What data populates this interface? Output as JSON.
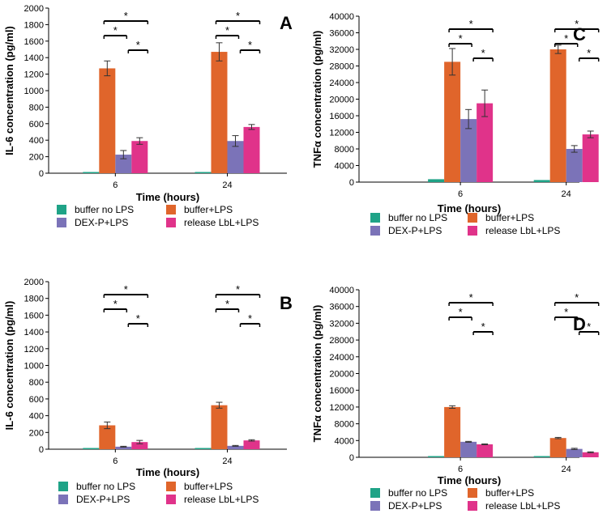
{
  "colors": {
    "buffer_no_lps": "#1fa387",
    "buffer_lps": "#e0652b",
    "dex_p_lps": "#7b73b8",
    "release_lbl_lps": "#e0338a"
  },
  "chart_data": [
    {
      "panel": "A",
      "type": "bar",
      "title": "",
      "xlabel": "Time (hours)",
      "ylabel": "IL-6 concentration (pg/ml)",
      "categories": [
        "6",
        "24"
      ],
      "ylim": [
        0,
        2000
      ],
      "yticks": [
        "0",
        "200",
        "400",
        "600",
        "800",
        "1000",
        "1200",
        "1400",
        "1600",
        "1800",
        "2000"
      ],
      "legend": [
        "buffer no LPS",
        "buffer+LPS",
        "DEX-P+LPS",
        "release LbL+LPS"
      ],
      "series": [
        {
          "name": "buffer no LPS",
          "color_key": "buffer_no_lps",
          "values": [
            5,
            5
          ],
          "errors": [
            0,
            0
          ]
        },
        {
          "name": "buffer+LPS",
          "color_key": "buffer_lps",
          "values": [
            1270,
            1470
          ],
          "errors": [
            90,
            110
          ]
        },
        {
          "name": "DEX-P+LPS",
          "color_key": "dex_p_lps",
          "values": [
            225,
            390
          ],
          "errors": [
            50,
            65
          ]
        },
        {
          "name": "release LbL+LPS",
          "color_key": "release_lbl_lps",
          "values": [
            390,
            560
          ],
          "errors": [
            40,
            30
          ]
        }
      ],
      "significance": "*"
    },
    {
      "panel": "C",
      "type": "bar",
      "title": "",
      "xlabel": "Time (hours)",
      "ylabel": "TNFα concentration (pg/ml)",
      "categories": [
        "6",
        "24"
      ],
      "ylim": [
        0,
        40000
      ],
      "yticks": [
        "0",
        "4000",
        "8000",
        "12000",
        "16000",
        "20000",
        "24000",
        "28000",
        "32000",
        "36000",
        "40000"
      ],
      "legend": [
        "buffer no LPS",
        "buffer+LPS",
        "DEX-P+LPS",
        "release LbL+LPS"
      ],
      "series": [
        {
          "name": "buffer no LPS",
          "color_key": "buffer_no_lps",
          "values": [
            700,
            500
          ],
          "errors": [
            0,
            0
          ]
        },
        {
          "name": "buffer+LPS",
          "color_key": "buffer_lps",
          "values": [
            29000,
            32000
          ],
          "errors": [
            3200,
            1000
          ]
        },
        {
          "name": "DEX-P+LPS",
          "color_key": "dex_p_lps",
          "values": [
            15200,
            8000
          ],
          "errors": [
            2300,
            800
          ]
        },
        {
          "name": "release LbL+LPS",
          "color_key": "release_lbl_lps",
          "values": [
            19000,
            11500
          ],
          "errors": [
            3200,
            800
          ]
        }
      ],
      "significance": "*"
    },
    {
      "panel": "B",
      "type": "bar",
      "title": "",
      "xlabel": "Time (hours)",
      "ylabel": "IL-6 concentration (pg/ml)",
      "categories": [
        "6",
        "24"
      ],
      "ylim": [
        0,
        2000
      ],
      "yticks": [
        "0",
        "200",
        "400",
        "600",
        "800",
        "1000",
        "1200",
        "1400",
        "1600",
        "1800",
        "2000"
      ],
      "legend": [
        "buffer no LPS",
        "buffer+LPS",
        "DEX-P+LPS",
        "release LbL+LPS"
      ],
      "series": [
        {
          "name": "buffer no LPS",
          "color_key": "buffer_no_lps",
          "values": [
            2,
            2
          ],
          "errors": [
            0,
            0
          ]
        },
        {
          "name": "buffer+LPS",
          "color_key": "buffer_lps",
          "values": [
            285,
            525
          ],
          "errors": [
            40,
            35
          ]
        },
        {
          "name": "DEX-P+LPS",
          "color_key": "dex_p_lps",
          "values": [
            30,
            40
          ],
          "errors": [
            5,
            5
          ]
        },
        {
          "name": "release LbL+LPS",
          "color_key": "release_lbl_lps",
          "values": [
            85,
            105
          ],
          "errors": [
            20,
            8
          ]
        }
      ],
      "significance": "*"
    },
    {
      "panel": "D",
      "type": "bar",
      "title": "",
      "xlabel": "Time (hours)",
      "ylabel": "TNFα concentration (pg/ml)",
      "categories": [
        "6",
        "24"
      ],
      "ylim": [
        0,
        40000
      ],
      "yticks": [
        "0",
        "4000",
        "8000",
        "12000",
        "16000",
        "20000",
        "24000",
        "28000",
        "32000",
        "36000",
        "40000"
      ],
      "legend": [
        "buffer no LPS",
        "buffer+LPS",
        "DEX-P+LPS",
        "release LbL+LPS"
      ],
      "series": [
        {
          "name": "buffer no LPS",
          "color_key": "buffer_no_lps",
          "values": [
            100,
            100
          ],
          "errors": [
            0,
            0
          ]
        },
        {
          "name": "buffer+LPS",
          "color_key": "buffer_lps",
          "values": [
            12000,
            4600
          ],
          "errors": [
            300,
            150
          ]
        },
        {
          "name": "DEX-P+LPS",
          "color_key": "dex_p_lps",
          "values": [
            3700,
            2000
          ],
          "errors": [
            100,
            150
          ]
        },
        {
          "name": "release LbL+LPS",
          "color_key": "release_lbl_lps",
          "values": [
            3100,
            1200
          ],
          "errors": [
            100,
            100
          ]
        }
      ],
      "significance": "*"
    }
  ]
}
